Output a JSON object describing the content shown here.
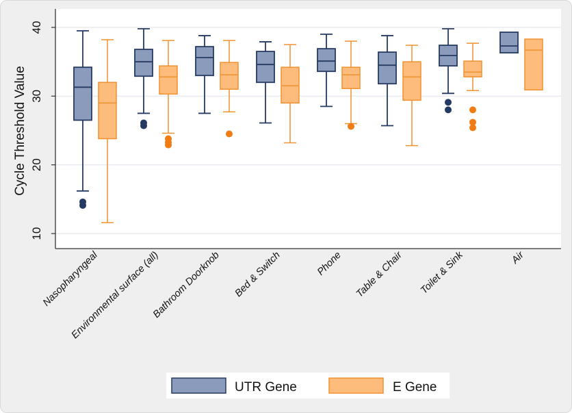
{
  "chart_data": {
    "type": "box",
    "title": "",
    "xlabel": "",
    "ylabel": "Cycle Threshold Value",
    "ylim": [
      10,
      40
    ],
    "yticks": [
      10,
      20,
      30,
      40
    ],
    "grid": true,
    "legend_position": "bottom",
    "categories": [
      "Nasopharyngeal",
      "Environmental surface (all)",
      "Bathroom Doorknob",
      "Bed & Switch",
      "Phone",
      "Table & Chair",
      "Toilet & Sink",
      "Air"
    ],
    "series": [
      {
        "name": "UTR Gene",
        "color": "#8b9bbb",
        "edge": "#253a63",
        "boxes": [
          {
            "whisker_low": 16.2,
            "q1": 26.5,
            "median": 31.3,
            "q3": 34.2,
            "whisker_high": 39.5,
            "outliers": [
              14.6,
              14.1
            ]
          },
          {
            "whisker_low": 27.5,
            "q1": 32.9,
            "median": 35.0,
            "q3": 36.8,
            "whisker_high": 39.8,
            "outliers": [
              26.1,
              25.7
            ]
          },
          {
            "whisker_low": 27.5,
            "q1": 33.0,
            "median": 35.6,
            "q3": 37.2,
            "whisker_high": 38.8,
            "outliers": []
          },
          {
            "whisker_low": 26.1,
            "q1": 32.0,
            "median": 34.6,
            "q3": 36.5,
            "whisker_high": 37.9,
            "outliers": []
          },
          {
            "whisker_low": 28.5,
            "q1": 33.6,
            "median": 35.1,
            "q3": 36.9,
            "whisker_high": 39.0,
            "outliers": []
          },
          {
            "whisker_low": 25.7,
            "q1": 31.8,
            "median": 34.5,
            "q3": 36.4,
            "whisker_high": 38.8,
            "outliers": []
          },
          {
            "whisker_low": 30.4,
            "q1": 34.4,
            "median": 35.9,
            "q3": 37.4,
            "whisker_high": 39.8,
            "outliers": [
              29.1,
              28.0
            ]
          },
          {
            "whisker_low": 36.3,
            "q1": 36.3,
            "median": 37.3,
            "q3": 39.3,
            "whisker_high": 39.3,
            "outliers": []
          }
        ]
      },
      {
        "name": "E Gene",
        "color": "#fdbb7c",
        "edge": "#f0912e",
        "outlier_color": "#f07d14",
        "boxes": [
          {
            "whisker_low": 11.6,
            "q1": 23.8,
            "median": 29.0,
            "q3": 32.0,
            "whisker_high": 38.2,
            "outliers": []
          },
          {
            "whisker_low": 24.6,
            "q1": 30.3,
            "median": 32.8,
            "q3": 34.4,
            "whisker_high": 38.1,
            "outliers": [
              23.8,
              23.3,
              22.9
            ]
          },
          {
            "whisker_low": 27.7,
            "q1": 31.0,
            "median": 33.1,
            "q3": 34.9,
            "whisker_high": 38.1,
            "outliers": [
              24.5
            ]
          },
          {
            "whisker_low": 23.2,
            "q1": 29.0,
            "median": 31.5,
            "q3": 34.2,
            "whisker_high": 37.5,
            "outliers": []
          },
          {
            "whisker_low": 26.0,
            "q1": 31.1,
            "median": 33.1,
            "q3": 34.2,
            "whisker_high": 38.0,
            "outliers": [
              25.6
            ]
          },
          {
            "whisker_low": 22.8,
            "q1": 29.4,
            "median": 32.8,
            "q3": 35.0,
            "whisker_high": 37.4,
            "outliers": []
          },
          {
            "whisker_low": 30.8,
            "q1": 32.8,
            "median": 33.5,
            "q3": 35.1,
            "whisker_high": 37.7,
            "outliers": [
              28.0,
              26.2,
              25.4
            ]
          },
          {
            "whisker_low": 30.9,
            "q1": 30.9,
            "median": 36.7,
            "q3": 38.3,
            "whisker_high": 38.3,
            "outliers": []
          }
        ]
      }
    ]
  }
}
